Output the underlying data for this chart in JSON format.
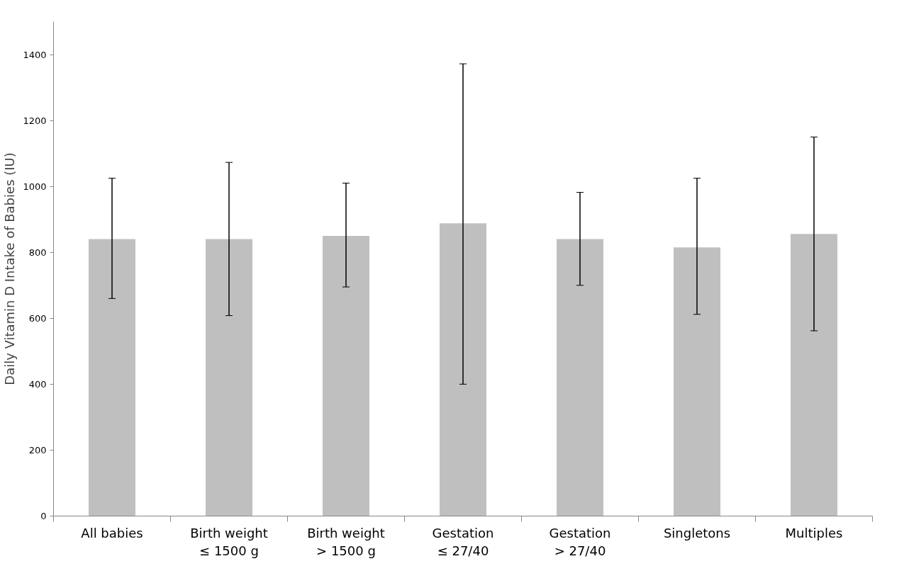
{
  "chart_data": {
    "type": "bar",
    "ylabel": "Daily Vitamin D Intake of Babies (IU)",
    "categories": [
      "All babies",
      "Birth weight\n≤ 1500 g",
      "Birth weight\n> 1500 g",
      "Gestation\n≤ 27/40",
      "Gestation\n> 27/40",
      "Singletons",
      "Multiples"
    ],
    "values": [
      840,
      840,
      850,
      888,
      840,
      815,
      856
    ],
    "errors": [
      [
        660,
        1025
      ],
      [
        608,
        1073
      ],
      [
        695,
        1010
      ],
      [
        400,
        1372
      ],
      [
        700,
        982
      ],
      [
        612,
        1025
      ],
      [
        562,
        1150
      ]
    ],
    "color": "#bfbfbf",
    "ylim": [
      0,
      1500
    ],
    "yticks": [
      0,
      200,
      400,
      600,
      800,
      1000,
      1200,
      1400
    ],
    "grid": false
  }
}
